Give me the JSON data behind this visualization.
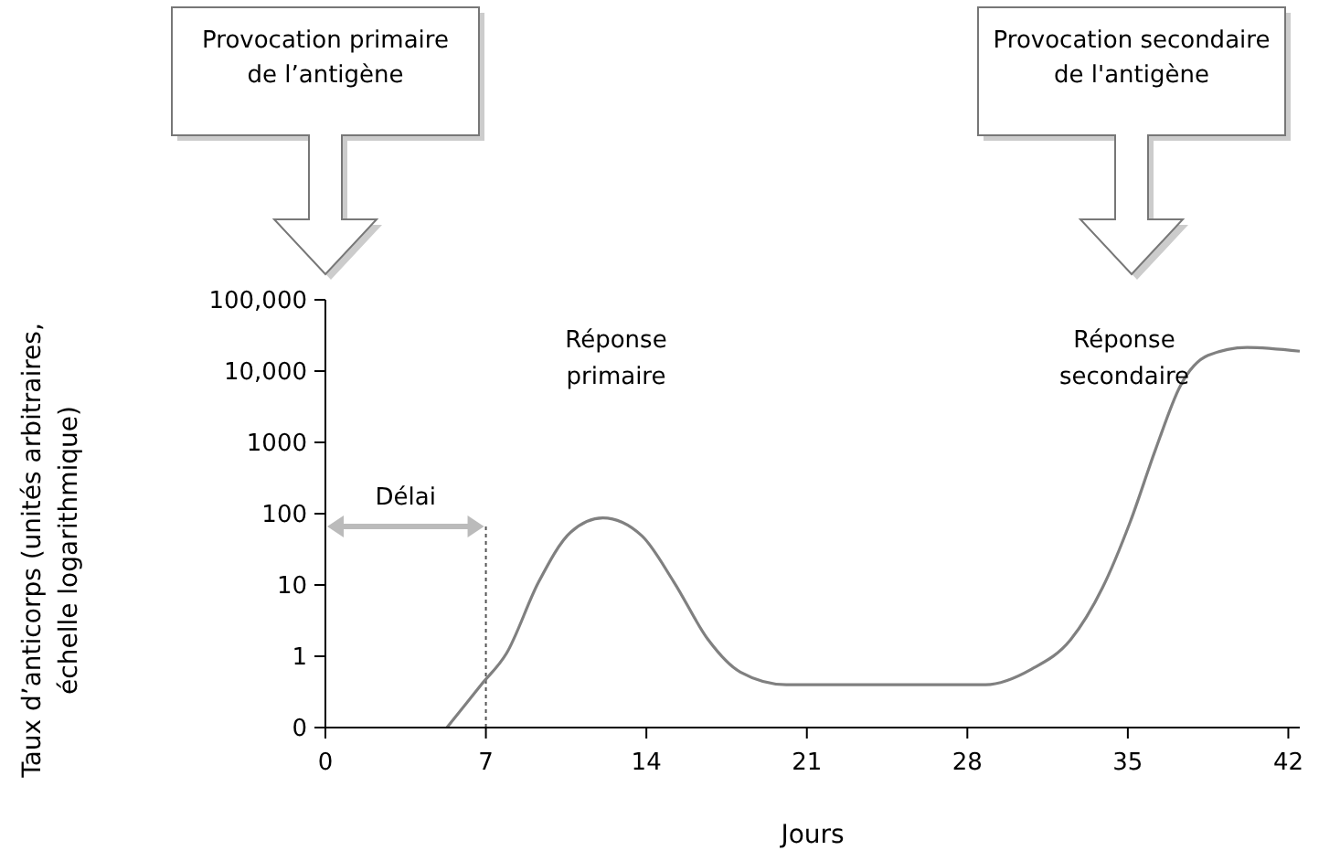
{
  "chart_data": {
    "type": "line",
    "xlabel": "Jours",
    "ylabel": "Taux d’anticorps (unités arbitraires,\néchelle logarithmique)",
    "log": "y",
    "xlim": [
      0,
      42.5
    ],
    "xticks": [
      0,
      7,
      14,
      21,
      28,
      35,
      42
    ],
    "ylim": [
      0.1,
      100000
    ],
    "yticks": [
      {
        "value": 0.1,
        "label": "0"
      },
      1,
      10,
      100,
      1000,
      {
        "value": 10000,
        "label": "10,000"
      },
      {
        "value": 100000,
        "label": "100,000"
      }
    ],
    "grid": false,
    "marker": "none",
    "line_style": "solid",
    "series": [
      {
        "color": "#808080",
        "x": [
          5.3,
          6.8,
          7.9,
          9.3,
          10.7,
          12.1,
          13.8,
          15.2,
          16.7,
          18.1,
          20.1,
          24,
          28.8,
          30.8,
          32.5,
          33.9,
          35.1,
          36.2,
          37.3,
          38.5,
          40.2,
          42.5
        ],
        "values": [
          0.1,
          0.4,
          1.1,
          11,
          55,
          87,
          49,
          11,
          1.7,
          0.6,
          0.4,
          0.4,
          0.4,
          0.66,
          1.7,
          9.2,
          76,
          780,
          6300,
          16600,
          21500,
          19000
        ]
      }
    ],
    "ref_lines": [
      {
        "axis": "x",
        "value": 7,
        "line_style": "dotted",
        "color": "#555555"
      }
    ],
    "annotations": [
      "Provocation primaire\nde l’antigène",
      "Provocation secondaire\nde l'antigène",
      "Délai",
      "Réponse\nprimaire",
      "Réponse\nsecondaire"
    ]
  }
}
